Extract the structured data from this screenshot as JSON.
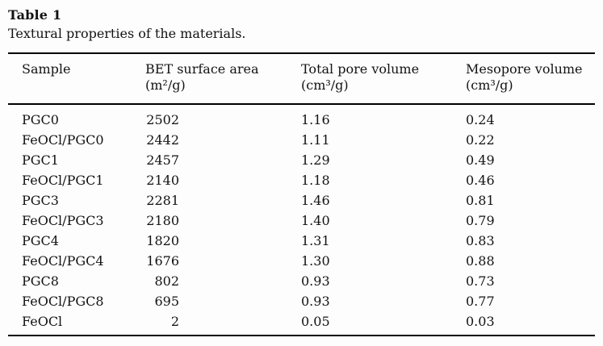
{
  "page": {
    "title": "Table 1",
    "caption": "Textural properties of the materials."
  },
  "table": {
    "columns": [
      {
        "label": "Sample",
        "unit": ""
      },
      {
        "label": "BET surface area",
        "unit": "(m²/g)"
      },
      {
        "label": "Total pore volume",
        "unit": "(cm³/g)"
      },
      {
        "label": "Mesopore volume",
        "unit": "(cm³/g)"
      }
    ],
    "rows": [
      {
        "sample": "PGC0",
        "bet": "2502",
        "total_pore": "1.16",
        "mesopore": "0.24"
      },
      {
        "sample": "FeOCl/PGC0",
        "bet": "2442",
        "total_pore": "1.11",
        "mesopore": "0.22"
      },
      {
        "sample": "PGC1",
        "bet": "2457",
        "total_pore": "1.29",
        "mesopore": "0.49"
      },
      {
        "sample": "FeOCl/PGC1",
        "bet": "2140",
        "total_pore": "1.18",
        "mesopore": "0.46"
      },
      {
        "sample": "PGC3",
        "bet": "2281",
        "total_pore": "1.46",
        "mesopore": "0.81"
      },
      {
        "sample": "FeOCl/PGC3",
        "bet": "2180",
        "total_pore": "1.40",
        "mesopore": "0.79"
      },
      {
        "sample": "PGC4",
        "bet": "1820",
        "total_pore": "1.31",
        "mesopore": "0.83"
      },
      {
        "sample": "FeOCl/PGC4",
        "bet": "1676",
        "total_pore": "1.30",
        "mesopore": "0.88"
      },
      {
        "sample": "PGC8",
        "bet": "802",
        "total_pore": "0.93",
        "mesopore": "0.73"
      },
      {
        "sample": "FeOCl/PGC8",
        "bet": "695",
        "total_pore": "0.93",
        "mesopore": "0.77"
      },
      {
        "sample": "FeOCl",
        "bet": "2",
        "total_pore": "0.05",
        "mesopore": "0.03"
      }
    ]
  }
}
